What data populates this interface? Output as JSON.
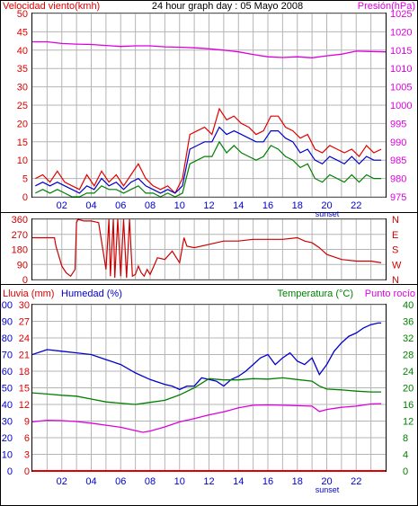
{
  "colors": {
    "wind": "#e00000",
    "wind_avg": "#0000cc",
    "wind_low": "#008000",
    "pressure": "#dd00dd",
    "direction": "#cc0000",
    "humidity": "#0000cc",
    "temperature": "#008000",
    "dewpoint": "#dd00dd",
    "rain": "#e00000",
    "grid": "#b4b4b4",
    "frame": "#000000",
    "legend_temp": "#008000",
    "legend_dew": "#dd00dd"
  },
  "chart_data": [
    {
      "type": "line",
      "title": "24 hour graph day : 05 Mayo 2008",
      "ylabel_left": "Velocidad viento(kmh)",
      "ylabel_right": "Presión(hPa)",
      "x_ticks": [
        "02",
        "04",
        "06",
        "08",
        "10",
        "12",
        "14",
        "16",
        "18",
        "20",
        "22"
      ],
      "x_annotation": "sunset",
      "y_left_ticks": [
        "0",
        "5",
        "10",
        "15",
        "20",
        "25",
        "30",
        "35",
        "40",
        "45",
        "50"
      ],
      "y_left_lim": [
        0,
        50
      ],
      "y_right_ticks": [
        "975",
        "980",
        "985",
        "990",
        "995",
        "1000",
        "1005",
        "1010",
        "1015",
        "1020",
        "1025"
      ],
      "y_right_lim": [
        972.5,
        1027.5
      ],
      "series": [
        {
          "key": "wind_gust",
          "axis": "left",
          "x": [
            0.2,
            0.7,
            1.2,
            1.7,
            2.2,
            2.7,
            3.2,
            3.7,
            4.2,
            4.7,
            5.2,
            5.7,
            6.2,
            6.7,
            7.2,
            7.7,
            8.2,
            8.7,
            9.2,
            9.7,
            10.2,
            10.7,
            11.2,
            11.7,
            12.2,
            12.7,
            13.2,
            13.7,
            14.2,
            14.7,
            15.2,
            15.7,
            16.2,
            16.7,
            17.2,
            17.7,
            18.2,
            18.7,
            19.2,
            19.7,
            20.2,
            20.7,
            21.2,
            21.7,
            22.2,
            22.7,
            23.2,
            23.7
          ],
          "y": [
            5,
            6,
            4,
            7,
            4,
            3,
            2,
            6,
            3,
            7,
            4,
            6,
            3,
            6,
            9,
            5,
            3,
            2,
            3,
            1,
            5,
            17,
            18,
            19,
            17,
            24,
            21,
            22,
            20,
            19,
            17,
            18,
            22,
            22,
            19,
            18,
            16,
            17,
            13,
            12,
            14,
            13,
            12,
            13,
            11,
            14,
            12,
            13
          ]
        },
        {
          "key": "wind_avg",
          "axis": "left",
          "x": [
            0.2,
            0.7,
            1.2,
            1.7,
            2.2,
            2.7,
            3.2,
            3.7,
            4.2,
            4.7,
            5.2,
            5.7,
            6.2,
            6.7,
            7.2,
            7.7,
            8.2,
            8.7,
            9.2,
            9.7,
            10.2,
            10.7,
            11.2,
            11.7,
            12.2,
            12.7,
            13.2,
            13.7,
            14.2,
            14.7,
            15.2,
            15.7,
            16.2,
            16.7,
            17.2,
            17.7,
            18.2,
            18.7,
            19.2,
            19.7,
            20.2,
            20.7,
            21.2,
            21.7,
            22.2,
            22.7,
            23.2,
            23.7
          ],
          "y": [
            3,
            4,
            3,
            4,
            3,
            2,
            1,
            3,
            2,
            5,
            3,
            4,
            2,
            4,
            5,
            3,
            2,
            1,
            2,
            1,
            3,
            13,
            14,
            15,
            15,
            19,
            17,
            18,
            17,
            16,
            15,
            15,
            18,
            18,
            16,
            15,
            12,
            13,
            10,
            9,
            11,
            10,
            9,
            11,
            9,
            11,
            10,
            10
          ]
        },
        {
          "key": "wind_low",
          "axis": "left",
          "x": [
            0.2,
            0.7,
            1.2,
            1.7,
            2.2,
            2.7,
            3.2,
            3.7,
            4.2,
            4.7,
            5.2,
            5.7,
            6.2,
            6.7,
            7.2,
            7.7,
            8.2,
            8.7,
            9.2,
            9.7,
            10.2,
            10.7,
            11.2,
            11.7,
            12.2,
            12.7,
            13.2,
            13.7,
            14.2,
            14.7,
            15.2,
            15.7,
            16.2,
            16.7,
            17.2,
            17.7,
            18.2,
            18.7,
            19.2,
            19.7,
            20.2,
            20.7,
            21.2,
            21.7,
            22.2,
            22.7,
            23.2,
            23.7
          ],
          "y": [
            1,
            2,
            1,
            2,
            1,
            0,
            0,
            1,
            1,
            3,
            2,
            2,
            1,
            2,
            3,
            1,
            1,
            0,
            1,
            0,
            1,
            9,
            10,
            11,
            11,
            15,
            12,
            14,
            12,
            11,
            10,
            11,
            14,
            13,
            11,
            10,
            8,
            9,
            5,
            4,
            6,
            5,
            4,
            6,
            4,
            6,
            5,
            5
          ]
        },
        {
          "key": "pressure",
          "axis": "right",
          "x": [
            0,
            1,
            2,
            3,
            4,
            5,
            6,
            7,
            8,
            9,
            10,
            11,
            12,
            13,
            14,
            15,
            16,
            17,
            18,
            19,
            20,
            21,
            22,
            23,
            24
          ],
          "y": [
            1019,
            1019,
            1018.5,
            1018.3,
            1018.2,
            1017.9,
            1017.6,
            1017.8,
            1017.8,
            1017.5,
            1017.4,
            1017.2,
            1016.9,
            1016.5,
            1016,
            1015.2,
            1014.5,
            1014.3,
            1014.5,
            1014.2,
            1014.8,
            1015.3,
            1016.2,
            1016.1,
            1016
          ]
        }
      ]
    },
    {
      "type": "line",
      "title": "",
      "y_left_ticks": [
        "0",
        "90",
        "180",
        "270",
        "360"
      ],
      "y_left_lim": [
        0,
        360
      ],
      "y_right_ticks": [
        "N",
        "W",
        "S",
        "E",
        "N"
      ],
      "x_ticks": [],
      "series": [
        {
          "key": "wind_direction",
          "axis": "left",
          "x": [
            0,
            1,
            1.5,
            1.6,
            2.0,
            2.3,
            2.6,
            2.9,
            3.0,
            3.1,
            3.5,
            4.0,
            4.5,
            5.0,
            5.2,
            5.3,
            5.5,
            5.6,
            5.8,
            6.0,
            6.2,
            6.4,
            6.6,
            6.8,
            7.0,
            7.2,
            7.4,
            7.6,
            7.8,
            8.0,
            8.5,
            9.0,
            9.5,
            10.0,
            10.3,
            10.5,
            11,
            12,
            13,
            14,
            15,
            16,
            17,
            18,
            18.5,
            19,
            19.5,
            20,
            21,
            22,
            23,
            23.7
          ],
          "y": [
            250,
            250,
            250,
            200,
            80,
            40,
            20,
            60,
            340,
            360,
            350,
            350,
            340,
            60,
            360,
            20,
            360,
            10,
            360,
            20,
            360,
            10,
            360,
            20,
            30,
            80,
            40,
            20,
            60,
            30,
            130,
            120,
            170,
            100,
            250,
            200,
            190,
            210,
            230,
            230,
            240,
            240,
            240,
            250,
            230,
            220,
            190,
            150,
            120,
            110,
            110,
            100
          ]
        }
      ]
    },
    {
      "type": "line",
      "title": "",
      "ylabel_left_1": "Lluvia (mm)",
      "ylabel_left_2": "Humedad (%)",
      "ylabel_right_1": "Temperatura (°C)",
      "ylabel_right_2": "Punto rocío",
      "x_ticks": [
        "02",
        "04",
        "06",
        "08",
        "10",
        "12",
        "14",
        "16",
        "18",
        "20",
        "22"
      ],
      "x_annotation": "sunset",
      "rain_ticks": [
        "0",
        "3",
        "6",
        "9",
        "12",
        "15",
        "18",
        "21",
        "24",
        "27",
        "30"
      ],
      "humidity_ticks": [
        "0",
        "10",
        "20",
        "30",
        "40",
        "50",
        "60",
        "70",
        "80",
        "90",
        "100"
      ],
      "humidity_lim": [
        0,
        100
      ],
      "temp_ticks": [
        "0",
        "4",
        "8",
        "12",
        "16",
        "20",
        "24",
        "28",
        "32",
        "36",
        "40"
      ],
      "temp_lim": [
        0,
        40
      ],
      "series": [
        {
          "key": "rain",
          "axis": "rain",
          "x": [
            0,
            24
          ],
          "y": [
            0,
            0
          ]
        },
        {
          "key": "humidity",
          "axis": "humidity",
          "x": [
            0,
            1,
            2,
            3,
            4,
            5,
            6,
            7,
            8,
            9,
            9.5,
            10,
            10.5,
            11,
            11.5,
            12,
            12.5,
            13,
            13.5,
            14,
            14.5,
            15,
            15.5,
            16,
            16.5,
            17,
            17.5,
            18,
            18.5,
            19,
            19.5,
            20,
            20.5,
            21,
            21.5,
            22,
            22.5,
            23,
            23.5,
            23.7
          ],
          "y": [
            70,
            73,
            72,
            71,
            70,
            67,
            64,
            59,
            55,
            52,
            51,
            49,
            51,
            51,
            56,
            55,
            54,
            51,
            55,
            57,
            60,
            64,
            68,
            70,
            64,
            68,
            71,
            66,
            64,
            68,
            58,
            64,
            72,
            77,
            81,
            83,
            86,
            88,
            89,
            89
          ]
        },
        {
          "key": "temperature",
          "axis": "temp",
          "x": [
            0,
            1,
            2,
            3,
            4,
            5,
            6,
            7,
            8,
            9,
            10,
            11,
            12,
            13,
            14,
            15,
            16,
            17,
            18,
            19,
            19.5,
            20,
            21,
            22,
            23,
            23.7
          ],
          "y": [
            18.8,
            18.5,
            18.2,
            18.0,
            17.3,
            16.6,
            16.3,
            16.0,
            16.5,
            17.0,
            18.3,
            20.0,
            22.2,
            21.9,
            21.9,
            22.2,
            22.1,
            22.4,
            22.0,
            21.6,
            20.4,
            19.7,
            19.5,
            19.2,
            19.0,
            19.0
          ]
        },
        {
          "key": "dewpoint",
          "axis": "temp",
          "x": [
            0,
            1,
            2,
            3,
            4,
            5,
            6,
            7,
            7.5,
            8,
            9,
            10,
            11,
            12,
            13,
            14,
            15,
            16,
            17,
            18,
            19,
            19.5,
            20,
            21,
            22,
            23,
            23.7
          ],
          "y": [
            11.8,
            12.2,
            12.1,
            11.9,
            11.5,
            11.0,
            10.5,
            9.7,
            9.3,
            9.6,
            10.6,
            11.8,
            12.6,
            13.5,
            14.2,
            15.2,
            15.8,
            15.9,
            15.8,
            15.7,
            15.6,
            14.3,
            14.8,
            15.3,
            15.6,
            16.1,
            16.2
          ]
        }
      ]
    }
  ]
}
